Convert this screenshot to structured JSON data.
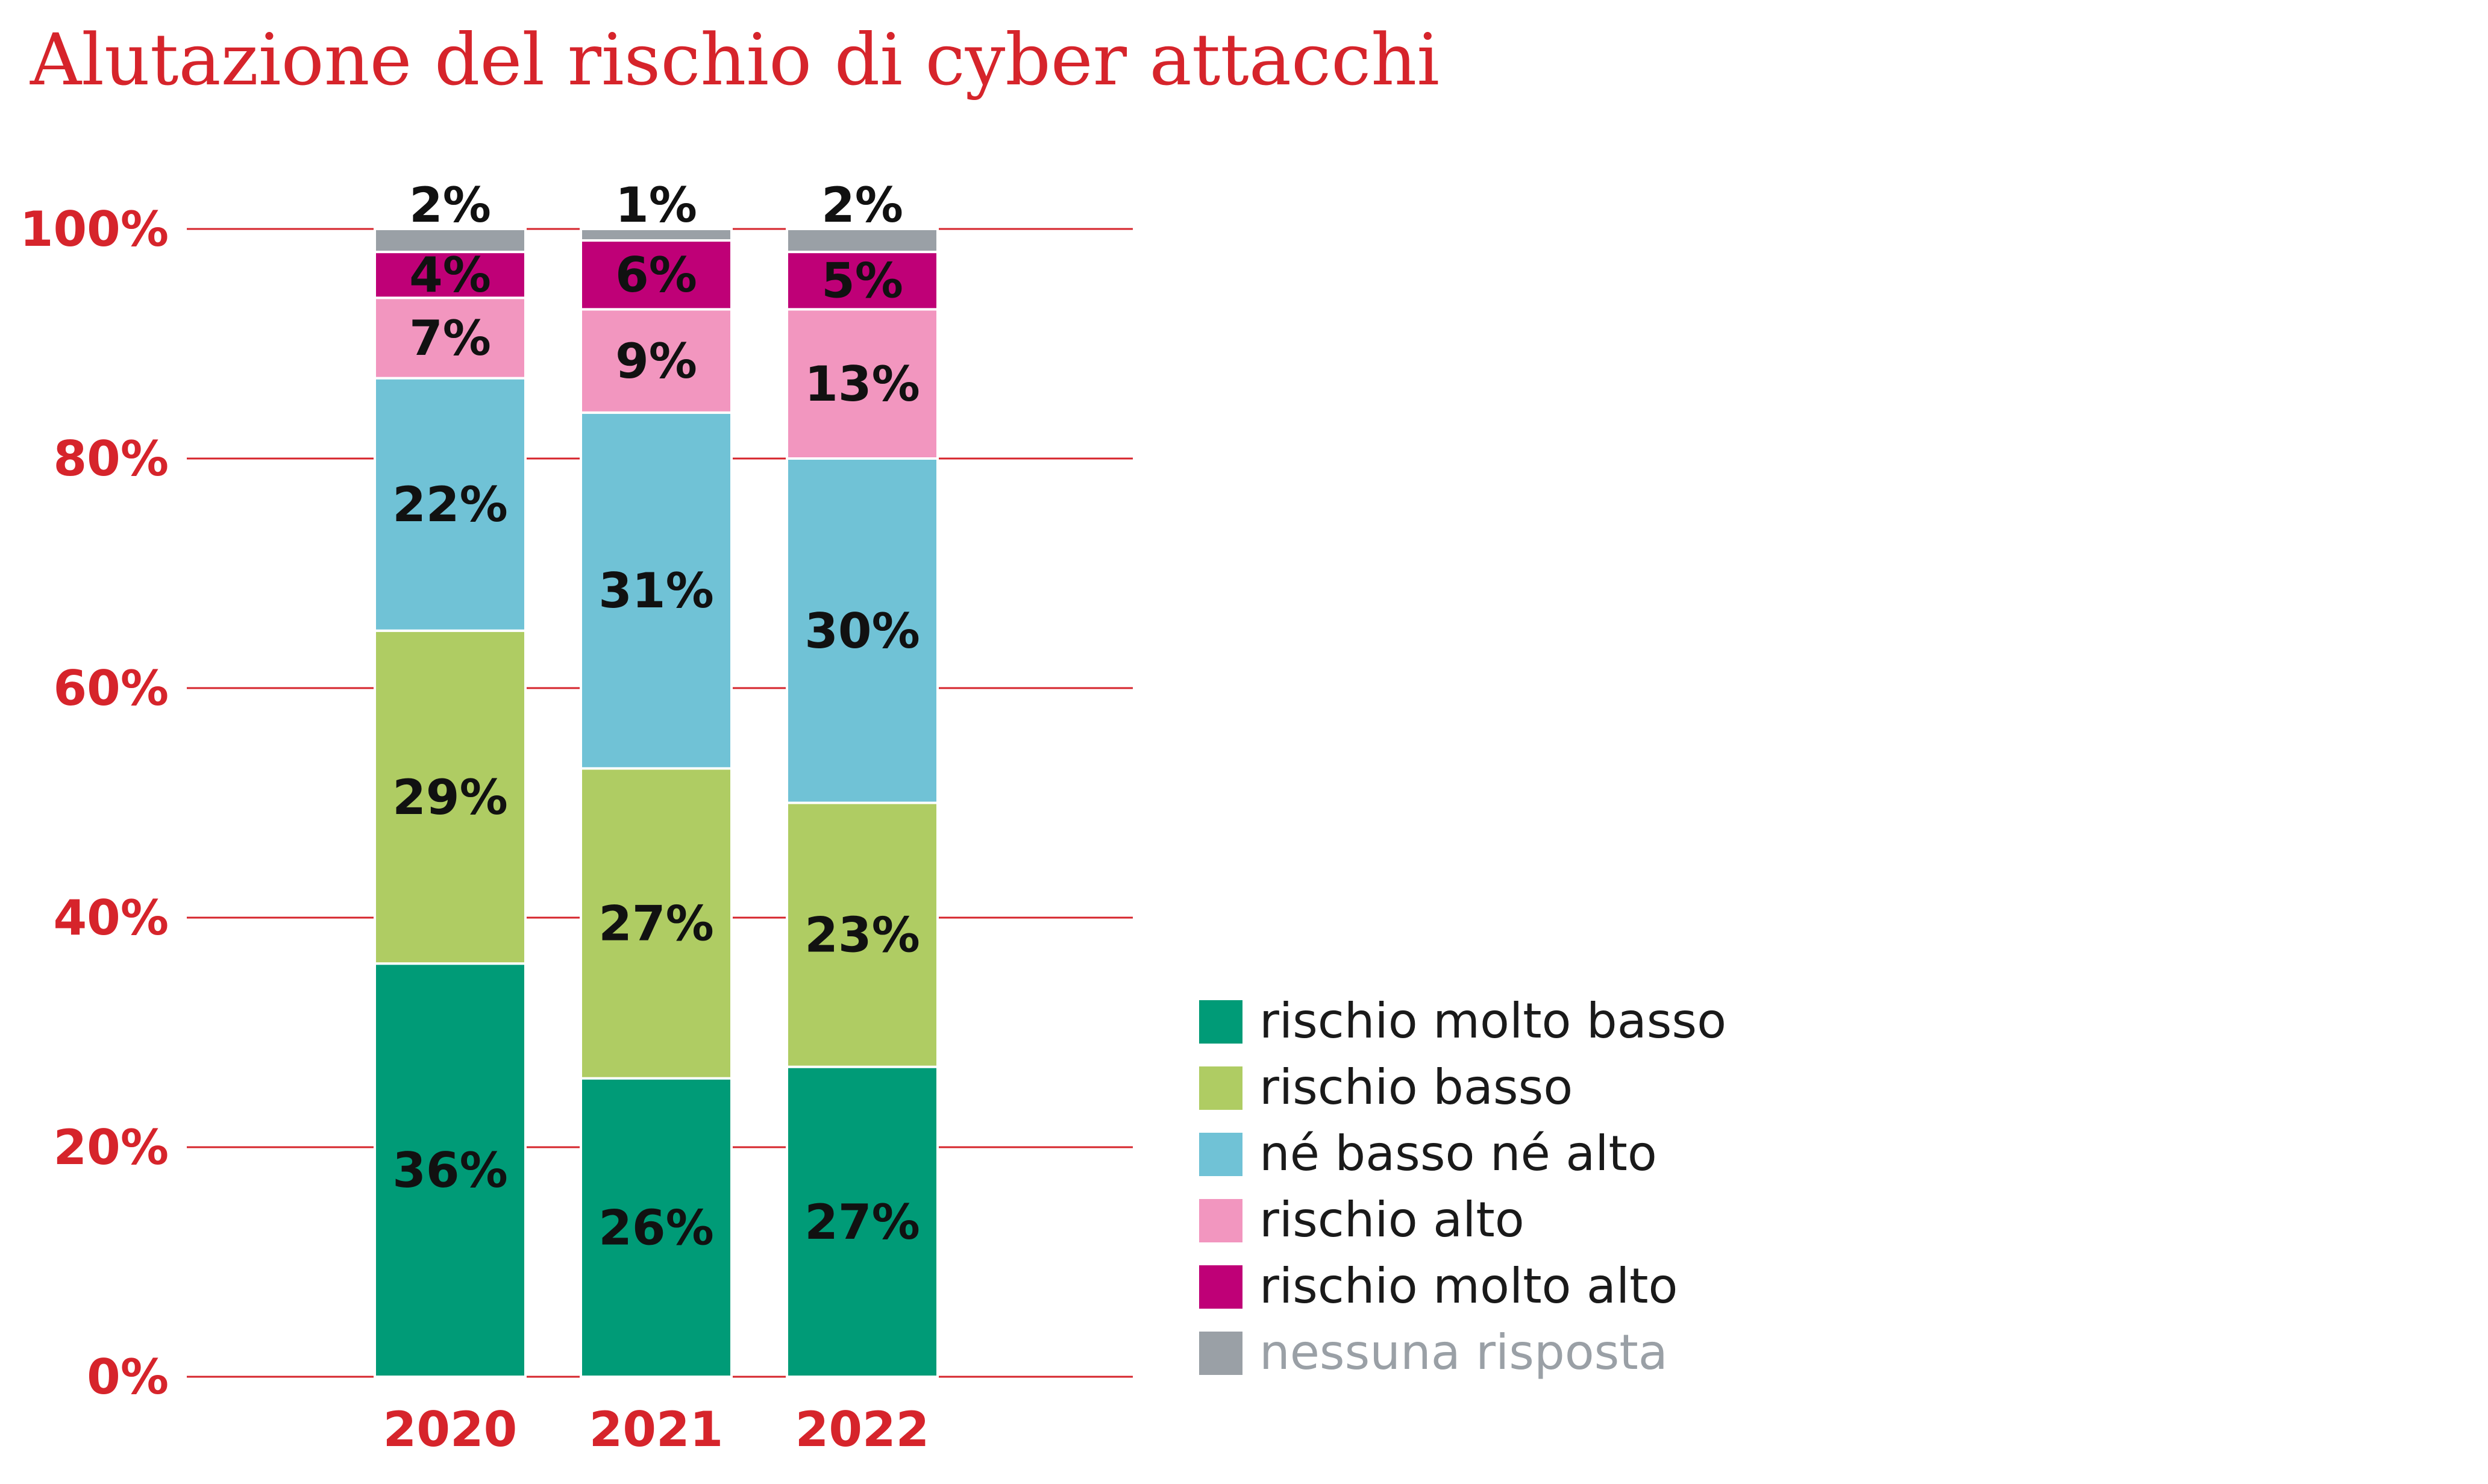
{
  "chart_data": {
    "type": "bar",
    "stacked": true,
    "title": "Alutazione del rischio di cyber attacchi",
    "categories": [
      "2020",
      "2021",
      "2022"
    ],
    "ylim": [
      0,
      100
    ],
    "yticks": [
      "0%",
      "20%",
      "40%",
      "60%",
      "80%",
      "100%"
    ],
    "grid": true,
    "legend_position": "right",
    "series": [
      {
        "name": "rischio molto basso",
        "color": "#009b77",
        "values": [
          36,
          26,
          27
        ],
        "labels": [
          "36%",
          "26%",
          "27%"
        ]
      },
      {
        "name": "rischio basso",
        "color": "#afcc63",
        "values": [
          29,
          27,
          23
        ],
        "labels": [
          "29%",
          "27%",
          "23%"
        ]
      },
      {
        "name": "né basso né alto",
        "color": "#70c2d6",
        "values": [
          22,
          31,
          30
        ],
        "labels": [
          "22%",
          "31%",
          "30%"
        ]
      },
      {
        "name": "rischio alto",
        "color": "#f296bf",
        "values": [
          7,
          9,
          13
        ],
        "labels": [
          "7%",
          "9%",
          "13%"
        ]
      },
      {
        "name": "rischio molto alto",
        "color": "#bf0077",
        "values": [
          4,
          6,
          5
        ],
        "labels": [
          "4%",
          "6%",
          "5%"
        ]
      },
      {
        "name": "nessuna risposta",
        "color": "#9aa0a6",
        "values": [
          2,
          1,
          2
        ],
        "labels": [
          "2%",
          "1%",
          "2%"
        ]
      }
    ]
  }
}
